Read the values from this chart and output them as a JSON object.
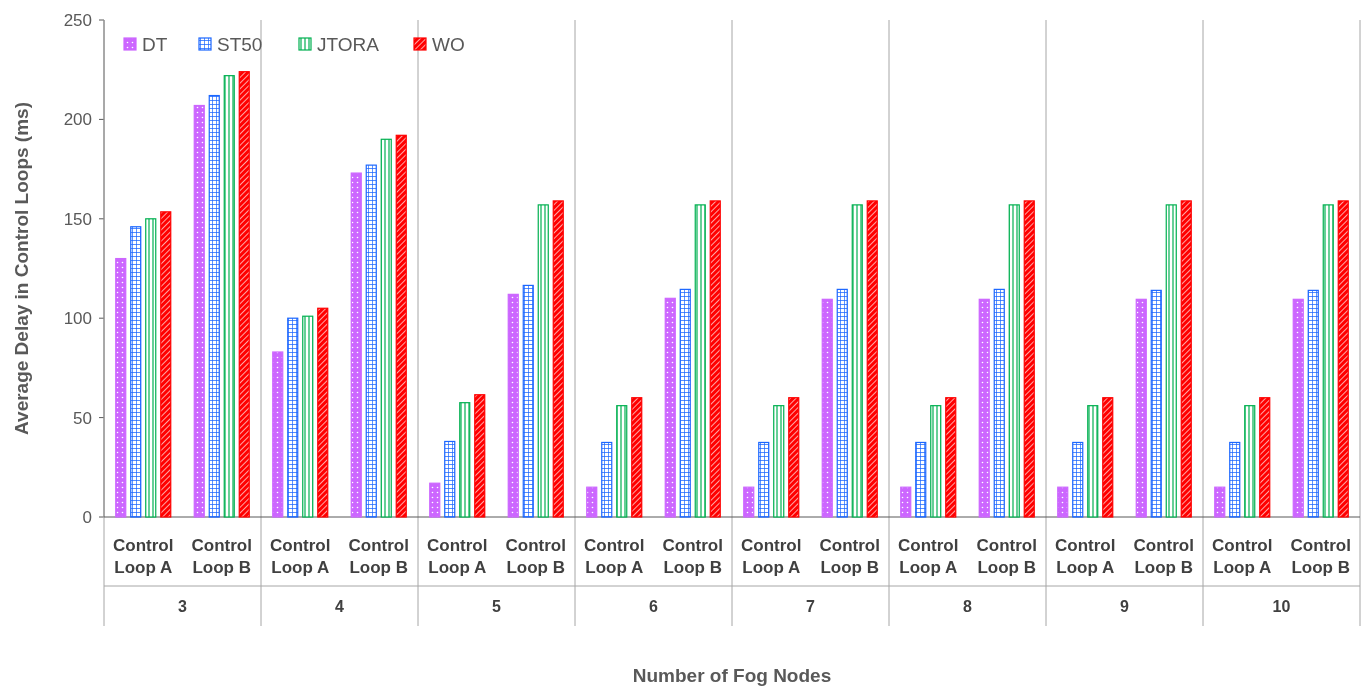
{
  "chart_data": {
    "type": "bar",
    "xlabel": "Number of Fog Nodes",
    "ylabel": "Average Delay in Control Loops (ms)",
    "categories": [
      "Control Loop A",
      "Control Loop B",
      "Control Loop A",
      "Control Loop B",
      "Control Loop A",
      "Control Loop B",
      "Control Loop A",
      "Control Loop B",
      "Control Loop A",
      "Control Loop B",
      "Control Loop A",
      "Control Loop B",
      "Control Loop A",
      "Control Loop B",
      "Control Loop A",
      "Control Loop B"
    ],
    "annotations": [
      "3",
      "4",
      "5",
      "6",
      "7",
      "8",
      "9",
      "10"
    ],
    "series": [
      {
        "name": "DT",
        "color": "#cc66ff",
        "values": [
          130,
          207,
          83,
          173,
          17,
          112,
          15,
          110,
          15,
          109.5,
          15,
          109.5,
          15,
          109.5,
          15,
          109.5
        ]
      },
      {
        "name": "ST50",
        "color": "#1a66ff",
        "values": [
          146,
          212,
          100,
          177,
          38,
          116.5,
          37.5,
          114.5,
          37.5,
          114.5,
          37.5,
          114.5,
          37.5,
          114,
          37.5,
          114
        ]
      },
      {
        "name": "JTORA",
        "color": "#00b050",
        "values": [
          150,
          222,
          101,
          190,
          57.5,
          157,
          56,
          157,
          56,
          157,
          56,
          157,
          56,
          157,
          56,
          157
        ]
      },
      {
        "name": "WO",
        "color": "#ff0000",
        "values": [
          153.5,
          224,
          105,
          192,
          61.5,
          159,
          60,
          159,
          60,
          159,
          60,
          159,
          60,
          159,
          60,
          159
        ]
      }
    ],
    "ylim": [
      0,
      250
    ],
    "yticks": [
      0,
      50,
      100,
      150,
      200,
      250
    ],
    "legend": "top left",
    "grid": false
  }
}
